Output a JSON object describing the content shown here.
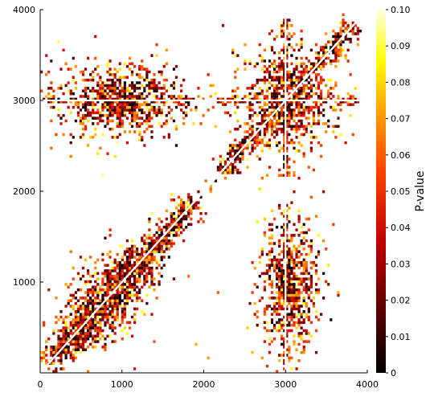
{
  "chart_data": {
    "type": "heatmap",
    "title": "",
    "xlabel": "",
    "ylabel": "",
    "xlim": [
      0,
      4000
    ],
    "ylim": [
      0,
      4000
    ],
    "x_ticks": [
      0,
      1000,
      2000,
      3000,
      4000
    ],
    "x_tick_labels": [
      "0",
      "1000",
      "2000",
      "3000",
      "4000"
    ],
    "y_ticks": [
      1000,
      2000,
      3000,
      4000
    ],
    "y_tick_labels": [
      "1000",
      "2000",
      "3000",
      "4000"
    ],
    "grid": false,
    "colorscale": "hot (black → red → orange → yellow → white)",
    "colorbar": {
      "label": "P-value",
      "range": [
        0,
        0.1
      ],
      "ticks": [
        0,
        0.01,
        0.02,
        0.03,
        0.04,
        0.05,
        0.06,
        0.07,
        0.08,
        0.09,
        0.1
      ],
      "tick_labels": [
        "0",
        "0.01",
        "0.02",
        "0.03",
        "0.04",
        "0.05",
        "0.06",
        "0.07",
        "0.08",
        "0.09",
        "0.10"
      ],
      "position": "right"
    },
    "clusters": [
      {
        "region": "diagonal band",
        "x_range": [
          100,
          1800
        ],
        "y_range": [
          100,
          1800
        ],
        "center": [
          900,
          900
        ]
      },
      {
        "region": "upper-left block",
        "x_range": [
          300,
          1900
        ],
        "y_range": [
          2500,
          3500
        ],
        "center": [
          1000,
          3000
        ]
      },
      {
        "region": "upper-right block",
        "x_range": [
          2200,
          3900
        ],
        "y_range": [
          2100,
          3900
        ],
        "center": [
          3000,
          3000
        ]
      },
      {
        "region": "lower-right block",
        "x_range": [
          2700,
          3600
        ],
        "y_range": [
          100,
          1800
        ],
        "center": [
          3000,
          1000
        ]
      }
    ],
    "white_gap_lines": [
      {
        "orientation": "horizontal",
        "y": 3000,
        "x_range": [
          0,
          4000
        ]
      },
      {
        "orientation": "vertical",
        "x": 3000,
        "y_range": [
          0,
          4000
        ]
      },
      {
        "orientation": "diagonal",
        "from": [
          0,
          0
        ],
        "to": [
          4000,
          4000
        ]
      }
    ]
  }
}
